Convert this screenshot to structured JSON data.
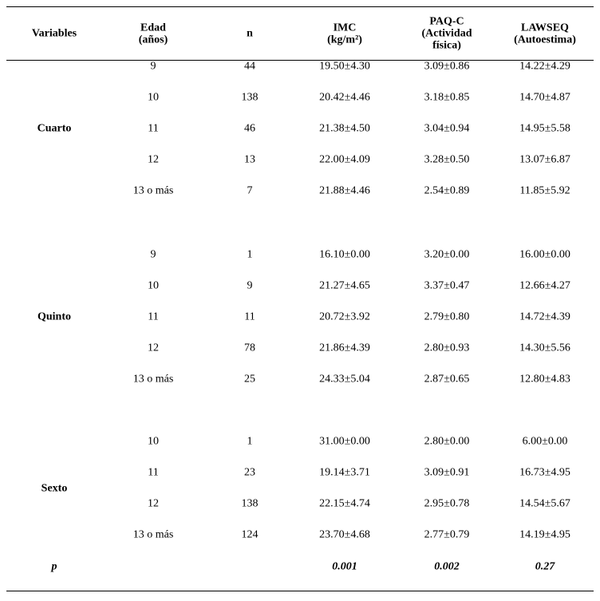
{
  "table": {
    "header": [
      [
        "Variables"
      ],
      [
        "Edad",
        "(años)"
      ],
      [
        "n"
      ],
      [
        "IMC",
        "(kg/m²)"
      ],
      [
        "PAQ-C",
        "(Actividad",
        "física)"
      ],
      [
        "LAWSEQ",
        "(Autoestima)"
      ]
    ],
    "groups": [
      {
        "label": "Cuarto",
        "rows": [
          [
            "9",
            "44",
            "19.50±4.30",
            "3.09±0.86",
            "14.22±4.29"
          ],
          [
            "10",
            "138",
            "20.42±4.46",
            "3.18±0.85",
            "14.70±4.87"
          ],
          [
            "11",
            "46",
            "21.38±4.50",
            "3.04±0.94",
            "14.95±5.58"
          ],
          [
            "12",
            "13",
            "22.00±4.09",
            "3.28±0.50",
            "13.07±6.87"
          ],
          [
            "13 o más",
            "7",
            "21.88±4.46",
            "2.54±0.89",
            "11.85±5.92"
          ]
        ]
      },
      {
        "label": "Quinto",
        "rows": [
          [
            "9",
            "1",
            "16.10±0.00",
            "3.20±0.00",
            "16.00±0.00"
          ],
          [
            "10",
            "9",
            "21.27±4.65",
            "3.37±0.47",
            "12.66±4.27"
          ],
          [
            "11",
            "11",
            "20.72±3.92",
            "2.79±0.80",
            "14.72±4.39"
          ],
          [
            "12",
            "78",
            "21.86±4.39",
            "2.80±0.93",
            "14.30±5.56"
          ],
          [
            "13 o más",
            "25",
            "24.33±5.04",
            "2.87±0.65",
            "12.80±4.83"
          ]
        ]
      },
      {
        "label": "Sexto",
        "rows": [
          [
            "10",
            "1",
            "31.00±0.00",
            "2.80±0.00",
            "6.00±0.00"
          ],
          [
            "11",
            "23",
            "19.14±3.71",
            "3.09±0.91",
            "16.73±4.95"
          ],
          [
            "12",
            "138",
            "22.15±4.74",
            "2.95±0.78",
            "14.54±5.67"
          ],
          [
            "13 o más",
            "124",
            "23.70±4.68",
            "2.77±0.79",
            "14.19±4.95"
          ]
        ]
      }
    ],
    "p_row": {
      "label": "p",
      "values": [
        "0.001",
        "0.002",
        "0.27"
      ]
    }
  }
}
